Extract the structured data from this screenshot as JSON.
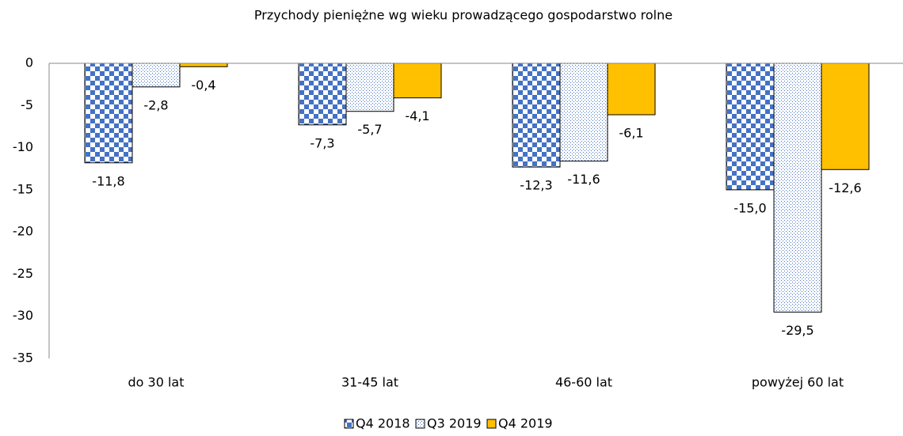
{
  "chart_data": {
    "type": "bar",
    "title": "Przychody pieniężne wg wieku prowadzącego gospodarstwo rolne",
    "categories": [
      "do 30 lat",
      "31-45 lat",
      "46-60 lat",
      "powyżej 60 lat"
    ],
    "series": [
      {
        "name": "Q4 2018",
        "color": "#4472c4",
        "pattern": "checker",
        "values": [
          -11.8,
          -7.3,
          -12.3,
          -15.0
        ],
        "value_labels": [
          "-11,8",
          "-7,3",
          "-12,3",
          "-15,0"
        ]
      },
      {
        "name": "Q3 2019",
        "color": "#4472c4",
        "pattern": "dots",
        "values": [
          -2.8,
          -5.7,
          -11.6,
          -29.5
        ],
        "value_labels": [
          "-2,8",
          "-5,7",
          "-11,6",
          "-29,5"
        ]
      },
      {
        "name": "Q4 2019",
        "color": "#ffc000",
        "pattern": "solid",
        "values": [
          -0.4,
          -4.1,
          -6.1,
          -12.6
        ],
        "value_labels": [
          "-0,4",
          "-4,1",
          "-6,1",
          "-12,6"
        ]
      }
    ],
    "ylim": [
      -35,
      0
    ],
    "yticks": [
      0,
      -5,
      -10,
      -15,
      -20,
      -25,
      -30,
      -35
    ],
    "grid": false,
    "legend": "bottom"
  }
}
